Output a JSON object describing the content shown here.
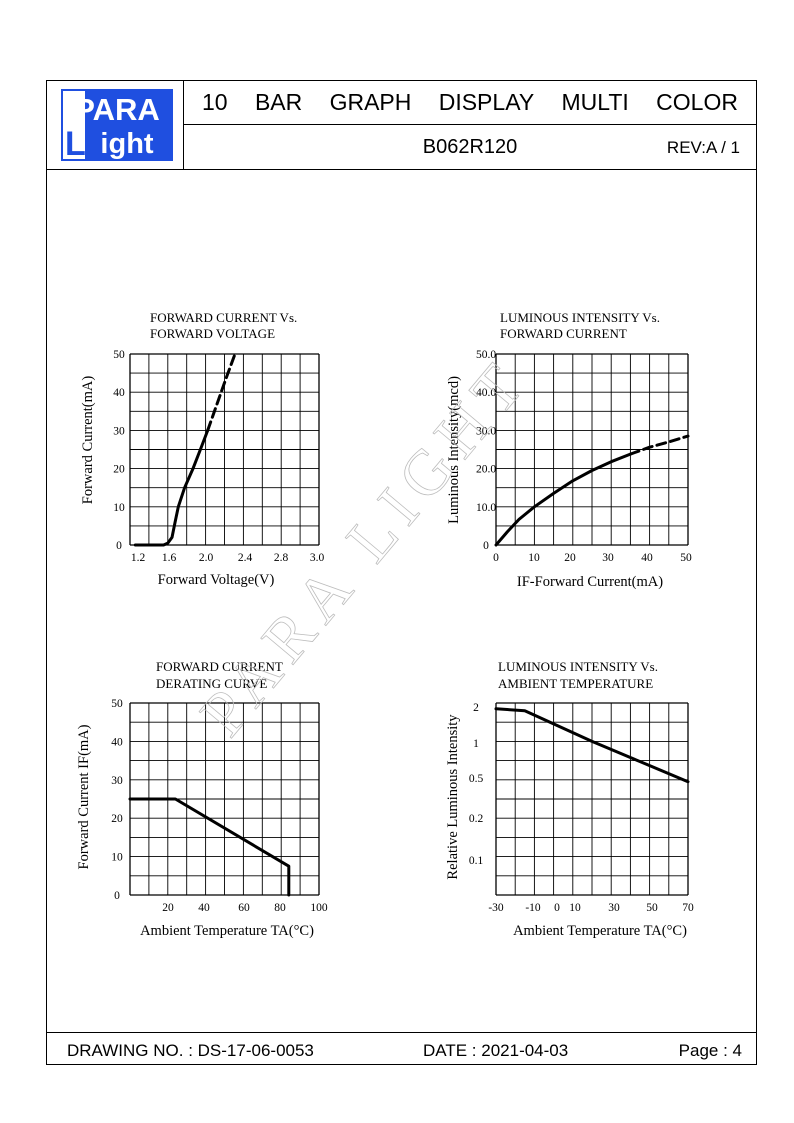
{
  "header": {
    "logo_top": "PARA",
    "logo_bottom": "ight",
    "logo_letter": "L",
    "title_words": [
      "10",
      "BAR",
      "GRAPH",
      "DISPLAY",
      "MULTI",
      "COLOR"
    ],
    "part_number": "B062R120",
    "revision": "REV:A / 1"
  },
  "footer": {
    "drawing_no": "DRAWING NO. : DS-17-06-0053",
    "date": "DATE : 2021-04-03",
    "page": "Page : 4"
  },
  "watermark": "PARA LIGHT",
  "chart_data": [
    {
      "type": "line",
      "title": [
        "FORWARD  CURRENT  Vs.",
        "FORWARD  VOLTAGE"
      ],
      "xlabel": "Forward  Voltage(V)",
      "ylabel": "Forward  Current(mA)",
      "xlim": [
        1.2,
        3.0
      ],
      "ylim": [
        0,
        50
      ],
      "x_ticks": [
        "1.2",
        "1.6",
        "2.0",
        "2.4",
        "2.8",
        "3.0"
      ],
      "y_ticks": [
        "0",
        "10",
        "20",
        "30",
        "40",
        "50"
      ],
      "grid": true,
      "series": [
        {
          "style": "solid",
          "points": [
            [
              1.25,
              0
            ],
            [
              1.52,
              0
            ],
            [
              1.56,
              0.5
            ],
            [
              1.6,
              2
            ],
            [
              1.63,
              6
            ],
            [
              1.66,
              10
            ],
            [
              1.72,
              15
            ],
            [
              1.8,
              20
            ],
            [
              1.87,
              25
            ],
            [
              1.94,
              30
            ]
          ]
        },
        {
          "style": "dashed",
          "points": [
            [
              1.94,
              30
            ],
            [
              2.03,
              37
            ],
            [
              2.12,
              44
            ],
            [
              2.2,
              50
            ]
          ]
        }
      ]
    },
    {
      "type": "line",
      "title": [
        "LUMINOUS  INTENSITY  Vs.",
        "FORWARD  CURRENT"
      ],
      "xlabel": "IF-Forward  Current(mA)",
      "ylabel": "Luminous  Intensity(mcd)",
      "xlim": [
        0,
        50
      ],
      "ylim": [
        0,
        50
      ],
      "x_ticks": [
        "0",
        "10",
        "20",
        "30",
        "40",
        "50"
      ],
      "y_ticks": [
        "0",
        "10.0",
        "20.0",
        "30.0",
        "40.0",
        "50.0"
      ],
      "grid": true,
      "series": [
        {
          "style": "solid",
          "points": [
            [
              0,
              0
            ],
            [
              3,
              3.5
            ],
            [
              6,
              6.7
            ],
            [
              10,
              10
            ],
            [
              15,
              13.5
            ],
            [
              20,
              16.8
            ],
            [
              25,
              19.5
            ],
            [
              30,
              21.8
            ],
            [
              35,
              23.8
            ]
          ]
        },
        {
          "style": "dashed",
          "points": [
            [
              35,
              23.8
            ],
            [
              40,
              25.6
            ],
            [
              45,
              27
            ],
            [
              50,
              28.5
            ]
          ]
        }
      ]
    },
    {
      "type": "line",
      "title": [
        "FORWARD  CURRENT",
        "DERATING  CURVE"
      ],
      "xlabel": "Ambient  Temperature  TA(°C)",
      "ylabel": "Forward  Current  IF(mA)",
      "xlim": [
        0,
        100
      ],
      "ylim": [
        0,
        50
      ],
      "x_ticks": [
        "20",
        "40",
        "60",
        "80",
        "100"
      ],
      "y_ticks": [
        "0",
        "10",
        "20",
        "30",
        "40",
        "50"
      ],
      "grid": true,
      "series": [
        {
          "style": "solid",
          "points": [
            [
              0,
              25
            ],
            [
              24,
              25
            ],
            [
              84,
              7.5
            ],
            [
              84,
              0
            ]
          ]
        }
      ]
    },
    {
      "type": "line",
      "title": [
        "LUMINOUS  INTENSITY  Vs.",
        "AMBIENT  TEMPERATURE"
      ],
      "xlabel": "Ambient  Temperature  TA(°C)",
      "ylabel": "Relative  Luminous  Intensity",
      "xlim": [
        -30,
        70
      ],
      "ylim": [
        0,
        50
      ],
      "x_ticks": [
        "-30",
        "-10",
        "0",
        "10",
        "30",
        "50",
        "70"
      ],
      "y_ticks": [
        "2",
        "1",
        "0.5",
        "0.2",
        "0.1"
      ],
      "grid": true,
      "series": [
        {
          "style": "solid",
          "points": [
            [
              -30,
              48.5
            ],
            [
              -15,
              48
            ],
            [
              20,
              40
            ],
            [
              70,
              29.5
            ]
          ]
        }
      ]
    }
  ],
  "colors": {
    "logo_blue": "#1f4fe0",
    "line": "#000000"
  }
}
